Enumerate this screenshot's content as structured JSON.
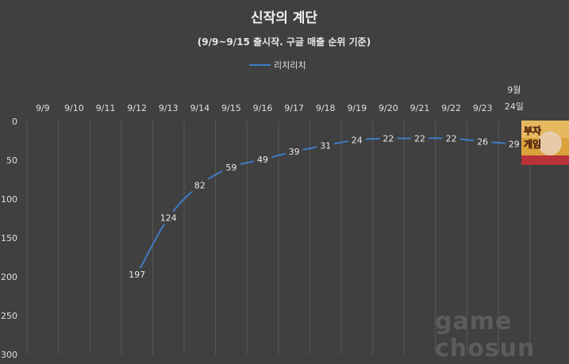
{
  "chart_data": {
    "type": "line",
    "title": "신작의 계단",
    "subtitle": "(9/9~9/15 출시작. 구글 매출 순위 기준)",
    "categories": [
      "9/9",
      "9/10",
      "9/11",
      "9/12",
      "9/13",
      "9/14",
      "9/15",
      "9/16",
      "9/17",
      "9/18",
      "9/19",
      "9/20",
      "9/21",
      "9/22",
      "9/23",
      "9월 24일"
    ],
    "category_label_lines": [
      [
        "9/9"
      ],
      [
        "9/10"
      ],
      [
        "9/11"
      ],
      [
        "9/12"
      ],
      [
        "9/13"
      ],
      [
        "9/14"
      ],
      [
        "9/15"
      ],
      [
        "9/16"
      ],
      [
        "9/17"
      ],
      [
        "9/18"
      ],
      [
        "9/19"
      ],
      [
        "9/20"
      ],
      [
        "9/21"
      ],
      [
        "9/22"
      ],
      [
        "9/23"
      ],
      [
        "9월",
        "24일"
      ]
    ],
    "series": [
      {
        "name": "리치리치",
        "color": "#3d7cc2",
        "values": [
          null,
          null,
          null,
          197,
          124,
          82,
          59,
          49,
          39,
          31,
          24,
          22,
          22,
          22,
          26,
          29
        ]
      }
    ],
    "y_ticks": [
      0,
      50,
      100,
      150,
      200,
      250,
      300
    ],
    "ylim": [
      0,
      300
    ],
    "y_reversed": true,
    "x_axis_position": "top",
    "legend_position": "top-center",
    "grid": "vertical",
    "background": "#404040",
    "icon": "game-poster-thumbnail",
    "icon_text": "부자게임",
    "watermark_lines": [
      "game",
      "chosun"
    ]
  }
}
